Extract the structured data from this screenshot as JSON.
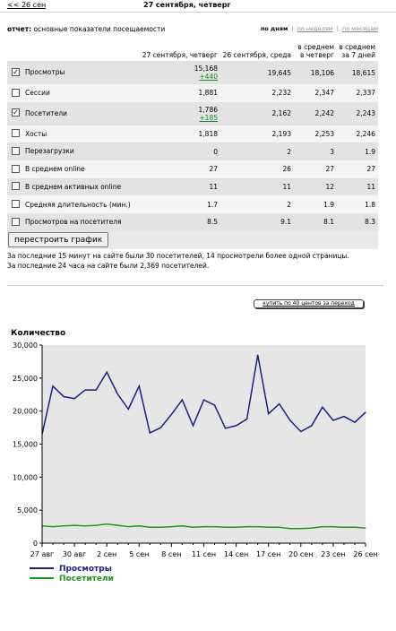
{
  "nav": {
    "back_label": "<< 26 сен",
    "date_title": "27 сентября, четверг"
  },
  "report": {
    "label_prefix": "отчет:",
    "label_text": "основные показатели посещаемости",
    "period": {
      "active": "по дням",
      "sep1": "|",
      "weeks": "по неделям",
      "sep2": "|",
      "months": "по месяцам"
    }
  },
  "table": {
    "headers": [
      "",
      "27 сентября, четверг",
      "26 сентября, среда",
      "в среднем в четверг",
      "в среднем за 7 дней"
    ],
    "rows": [
      {
        "name": "Просмотры",
        "checked": true,
        "today": "15,168",
        "delta": "+440",
        "yesterday": "19,645",
        "avg_thu": "18,106",
        "avg_7": "18,615"
      },
      {
        "name": "Сессии",
        "checked": false,
        "today": "1,881",
        "delta": "",
        "yesterday": "2,232",
        "avg_thu": "2,347",
        "avg_7": "2,337"
      },
      {
        "name": "Посетители",
        "checked": true,
        "today": "1,786",
        "delta": "+185",
        "yesterday": "2,162",
        "avg_thu": "2,242",
        "avg_7": "2,243"
      },
      {
        "name": "Хосты",
        "checked": false,
        "today": "1,818",
        "delta": "",
        "yesterday": "2,193",
        "avg_thu": "2,253",
        "avg_7": "2,246"
      },
      {
        "name": "Перезагрузки",
        "checked": false,
        "today": "0",
        "delta": "",
        "yesterday": "2",
        "avg_thu": "3",
        "avg_7": "1.9"
      },
      {
        "name": "В среднем online",
        "checked": false,
        "today": "27",
        "delta": "",
        "yesterday": "26",
        "avg_thu": "27",
        "avg_7": "27"
      },
      {
        "name": "В среднем активных online",
        "checked": false,
        "today": "11",
        "delta": "",
        "yesterday": "11",
        "avg_thu": "12",
        "avg_7": "11"
      },
      {
        "name": "Средняя длительность (мин.)",
        "checked": false,
        "today": "1.7",
        "delta": "",
        "yesterday": "2",
        "avg_thu": "1.9",
        "avg_7": "1.8"
      },
      {
        "name": "Просмотров на посетителя",
        "checked": false,
        "today": "8.5",
        "delta": "",
        "yesterday": "9.1",
        "avg_thu": "8.1",
        "avg_7": "8.3"
      }
    ]
  },
  "actions": {
    "rebuild_label": "перестроить график",
    "buy_label": "купить по 40 центов за переход"
  },
  "info": {
    "line1": "За последние 15 минут на сайте были 30 посетителей, 14 просмотрели более одной страницы.",
    "line2": "За последние 24 часа на сайте были 2,369 посетителей."
  },
  "colors": {
    "series_views": "#1c1c8c",
    "series_visitors": "#1f9a1f"
  },
  "chart_data": {
    "type": "line",
    "title": "Количество",
    "x_tick_labels": [
      "27 авг",
      "30 авг",
      "2 сен",
      "5 сен",
      "8 сен",
      "11 сен",
      "14 сен",
      "17 сен",
      "20 сен",
      "23 сен",
      "26 сен"
    ],
    "y_tick_labels": [
      "0",
      "5,000",
      "10,000",
      "15,000",
      "20,000",
      "25,000",
      "30,000"
    ],
    "ylim": [
      0,
      30000
    ],
    "grid": false,
    "legend_position": "bottom-left",
    "series": [
      {
        "name": "Просмотры",
        "values": [
          16500,
          23800,
          22200,
          21900,
          23200,
          23200,
          25900,
          22600,
          20300,
          23800,
          16700,
          17500,
          19500,
          21700,
          17800,
          21700,
          20900,
          17400,
          17800,
          18800,
          28500,
          19600,
          21100,
          18600,
          16900,
          17800,
          20600,
          18600,
          19200,
          18300,
          19800
        ]
      },
      {
        "name": "Посетители",
        "values": [
          2600,
          2500,
          2600,
          2700,
          2600,
          2700,
          2900,
          2700,
          2500,
          2600,
          2400,
          2400,
          2500,
          2600,
          2400,
          2500,
          2500,
          2400,
          2400,
          2500,
          2500,
          2400,
          2400,
          2200,
          2200,
          2300,
          2500,
          2500,
          2400,
          2400,
          2300
        ]
      }
    ]
  }
}
